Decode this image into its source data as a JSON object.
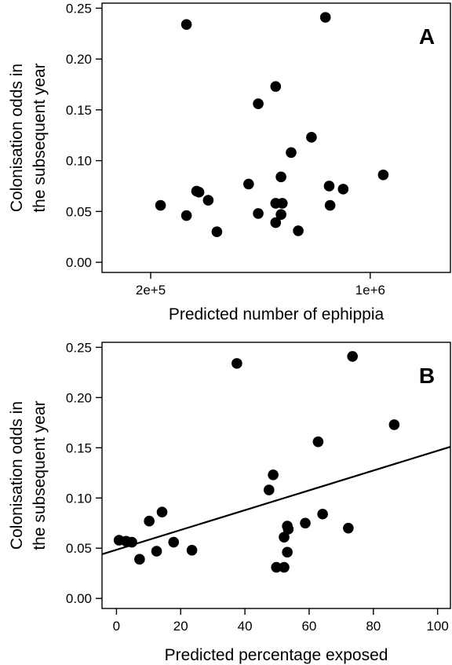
{
  "chart_data": [
    {
      "type": "scatter",
      "panel_label": "A",
      "xlabel": "Predicted number of ephippia",
      "ylabel_line1": "Colonisation odds in",
      "ylabel_line2": "the subsequent year",
      "x_scale": "log",
      "xlim": [
        140000,
        1800000
      ],
      "ylim": [
        -0.01,
        0.255
      ],
      "xticks": [
        {
          "value": 200000,
          "label": "2e+5"
        },
        {
          "value": 1000000,
          "label": "1e+6"
        }
      ],
      "yticks": [
        {
          "value": 0.0,
          "label": "0.00"
        },
        {
          "value": 0.05,
          "label": "0.05"
        },
        {
          "value": 0.1,
          "label": "0.10"
        },
        {
          "value": 0.15,
          "label": "0.15"
        },
        {
          "value": 0.2,
          "label": "0.20"
        },
        {
          "value": 0.25,
          "label": "0.25"
        }
      ],
      "grid": false,
      "points": [
        {
          "x": 260000,
          "y": 0.234
        },
        {
          "x": 720000,
          "y": 0.241
        },
        {
          "x": 500000,
          "y": 0.173
        },
        {
          "x": 440000,
          "y": 0.156
        },
        {
          "x": 650000,
          "y": 0.123
        },
        {
          "x": 560000,
          "y": 0.108
        },
        {
          "x": 1100000,
          "y": 0.086
        },
        {
          "x": 520000,
          "y": 0.084
        },
        {
          "x": 410000,
          "y": 0.077
        },
        {
          "x": 740000,
          "y": 0.075
        },
        {
          "x": 820000,
          "y": 0.072
        },
        {
          "x": 280000,
          "y": 0.07
        },
        {
          "x": 285000,
          "y": 0.069
        },
        {
          "x": 305000,
          "y": 0.061
        },
        {
          "x": 500000,
          "y": 0.058
        },
        {
          "x": 525000,
          "y": 0.058
        },
        {
          "x": 215000,
          "y": 0.056
        },
        {
          "x": 745000,
          "y": 0.056
        },
        {
          "x": 440000,
          "y": 0.048
        },
        {
          "x": 520000,
          "y": 0.047
        },
        {
          "x": 260000,
          "y": 0.046
        },
        {
          "x": 500000,
          "y": 0.039
        },
        {
          "x": 325000,
          "y": 0.03
        },
        {
          "x": 590000,
          "y": 0.031
        }
      ]
    },
    {
      "type": "scatter",
      "panel_label": "B",
      "xlabel": "Predicted percentage exposed",
      "ylabel_line1": "Colonisation odds in",
      "ylabel_line2": "the subsequent year",
      "x_scale": "linear",
      "xlim": [
        -4.5,
        104
      ],
      "ylim": [
        -0.01,
        0.255
      ],
      "xticks": [
        {
          "value": 0,
          "label": "0"
        },
        {
          "value": 20,
          "label": "20"
        },
        {
          "value": 40,
          "label": "40"
        },
        {
          "value": 60,
          "label": "60"
        },
        {
          "value": 80,
          "label": "80"
        },
        {
          "value": 100,
          "label": "100"
        }
      ],
      "yticks": [
        {
          "value": 0.0,
          "label": "0.00"
        },
        {
          "value": 0.05,
          "label": "0.05"
        },
        {
          "value": 0.1,
          "label": "0.10"
        },
        {
          "value": 0.15,
          "label": "0.15"
        },
        {
          "value": 0.2,
          "label": "0.20"
        },
        {
          "value": 0.25,
          "label": "0.25"
        }
      ],
      "grid": false,
      "fit_line": {
        "x": [
          -4.5,
          104
        ],
        "y": [
          0.044,
          0.151
        ]
      },
      "points": [
        {
          "x": 37.5,
          "y": 0.234
        },
        {
          "x": 73.5,
          "y": 0.241
        },
        {
          "x": 86.5,
          "y": 0.173
        },
        {
          "x": 62.8,
          "y": 0.156
        },
        {
          "x": 48.8,
          "y": 0.123
        },
        {
          "x": 47.5,
          "y": 0.108
        },
        {
          "x": 14.2,
          "y": 0.086
        },
        {
          "x": 64.2,
          "y": 0.084
        },
        {
          "x": 10.2,
          "y": 0.077
        },
        {
          "x": 58.8,
          "y": 0.075
        },
        {
          "x": 53.2,
          "y": 0.072
        },
        {
          "x": 72.2,
          "y": 0.07
        },
        {
          "x": 53.5,
          "y": 0.069
        },
        {
          "x": 52.2,
          "y": 0.061
        },
        {
          "x": 0.8,
          "y": 0.058
        },
        {
          "x": 3.0,
          "y": 0.057
        },
        {
          "x": 4.8,
          "y": 0.056
        },
        {
          "x": 17.8,
          "y": 0.056
        },
        {
          "x": 23.5,
          "y": 0.048
        },
        {
          "x": 12.5,
          "y": 0.047
        },
        {
          "x": 53.2,
          "y": 0.046
        },
        {
          "x": 7.2,
          "y": 0.039
        },
        {
          "x": 49.8,
          "y": 0.031
        },
        {
          "x": 52.2,
          "y": 0.031
        }
      ]
    }
  ]
}
